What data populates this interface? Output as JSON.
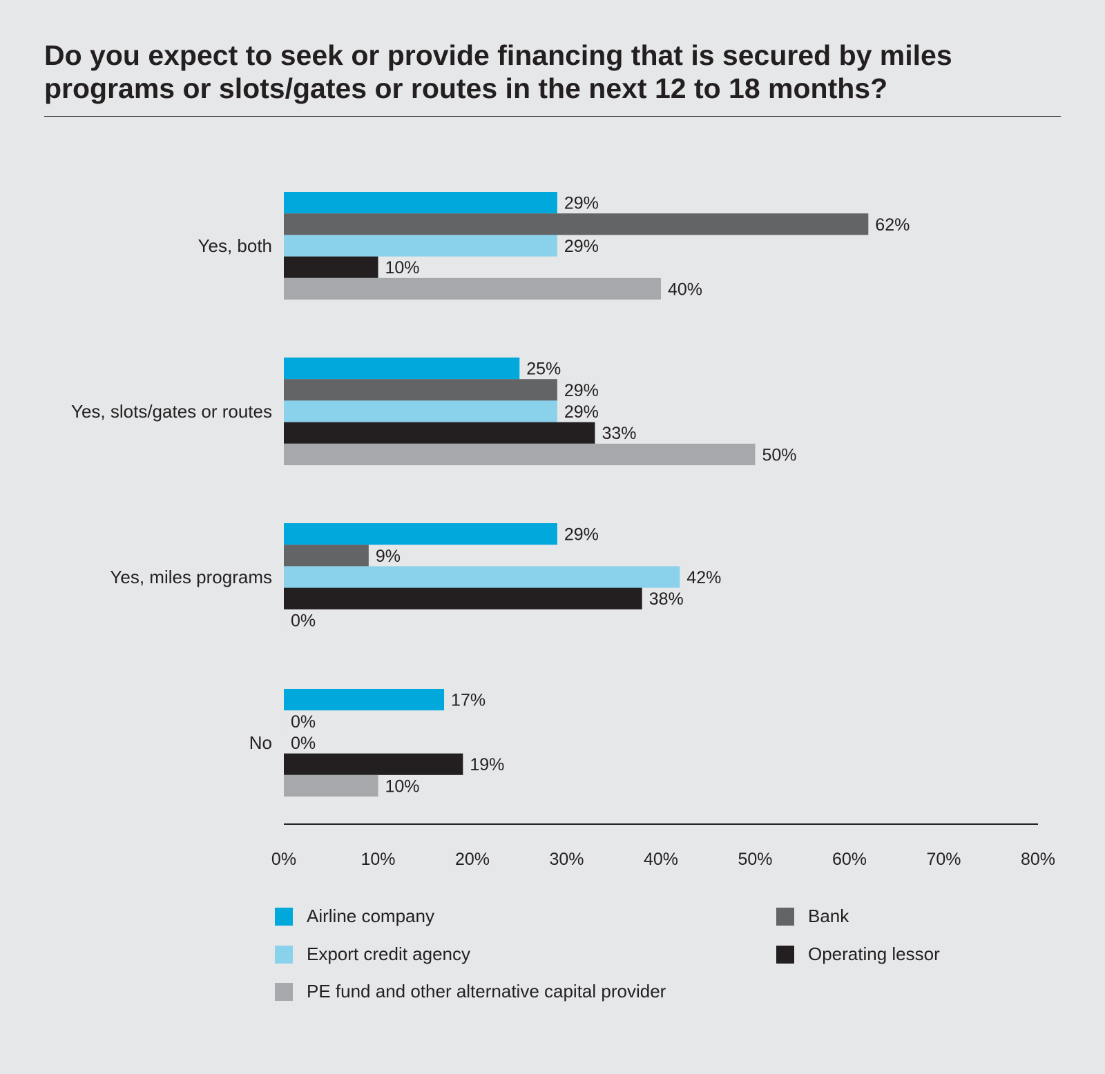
{
  "chart_data": {
    "type": "bar",
    "orientation": "horizontal",
    "title": "Do you expect to seek or provide financing that is secured by miles programs or slots/gates or routes in the next 12 to 18 months?",
    "categories": [
      "Yes, both",
      "Yes, slots/gates or routes",
      "Yes, miles programs",
      "No"
    ],
    "series": [
      {
        "name": "Airline company",
        "color": "#00a8db",
        "values": [
          29,
          25,
          29,
          17
        ]
      },
      {
        "name": "Bank",
        "color": "#636466",
        "values": [
          62,
          29,
          9,
          0
        ]
      },
      {
        "name": "Export credit agency",
        "color": "#8ad2ec",
        "values": [
          29,
          29,
          42,
          0
        ]
      },
      {
        "name": "Operating lessor",
        "color": "#231f20",
        "values": [
          10,
          33,
          38,
          19
        ]
      },
      {
        "name": "PE fund and other alternative capital provider",
        "color": "#a7a8ab",
        "values": [
          40,
          50,
          0,
          10
        ]
      }
    ],
    "xlim": [
      0,
      80
    ],
    "xticks": [
      "0%",
      "10%",
      "20%",
      "30%",
      "40%",
      "50%",
      "60%",
      "70%",
      "80%"
    ],
    "legend_position": "bottom",
    "grid": false
  }
}
